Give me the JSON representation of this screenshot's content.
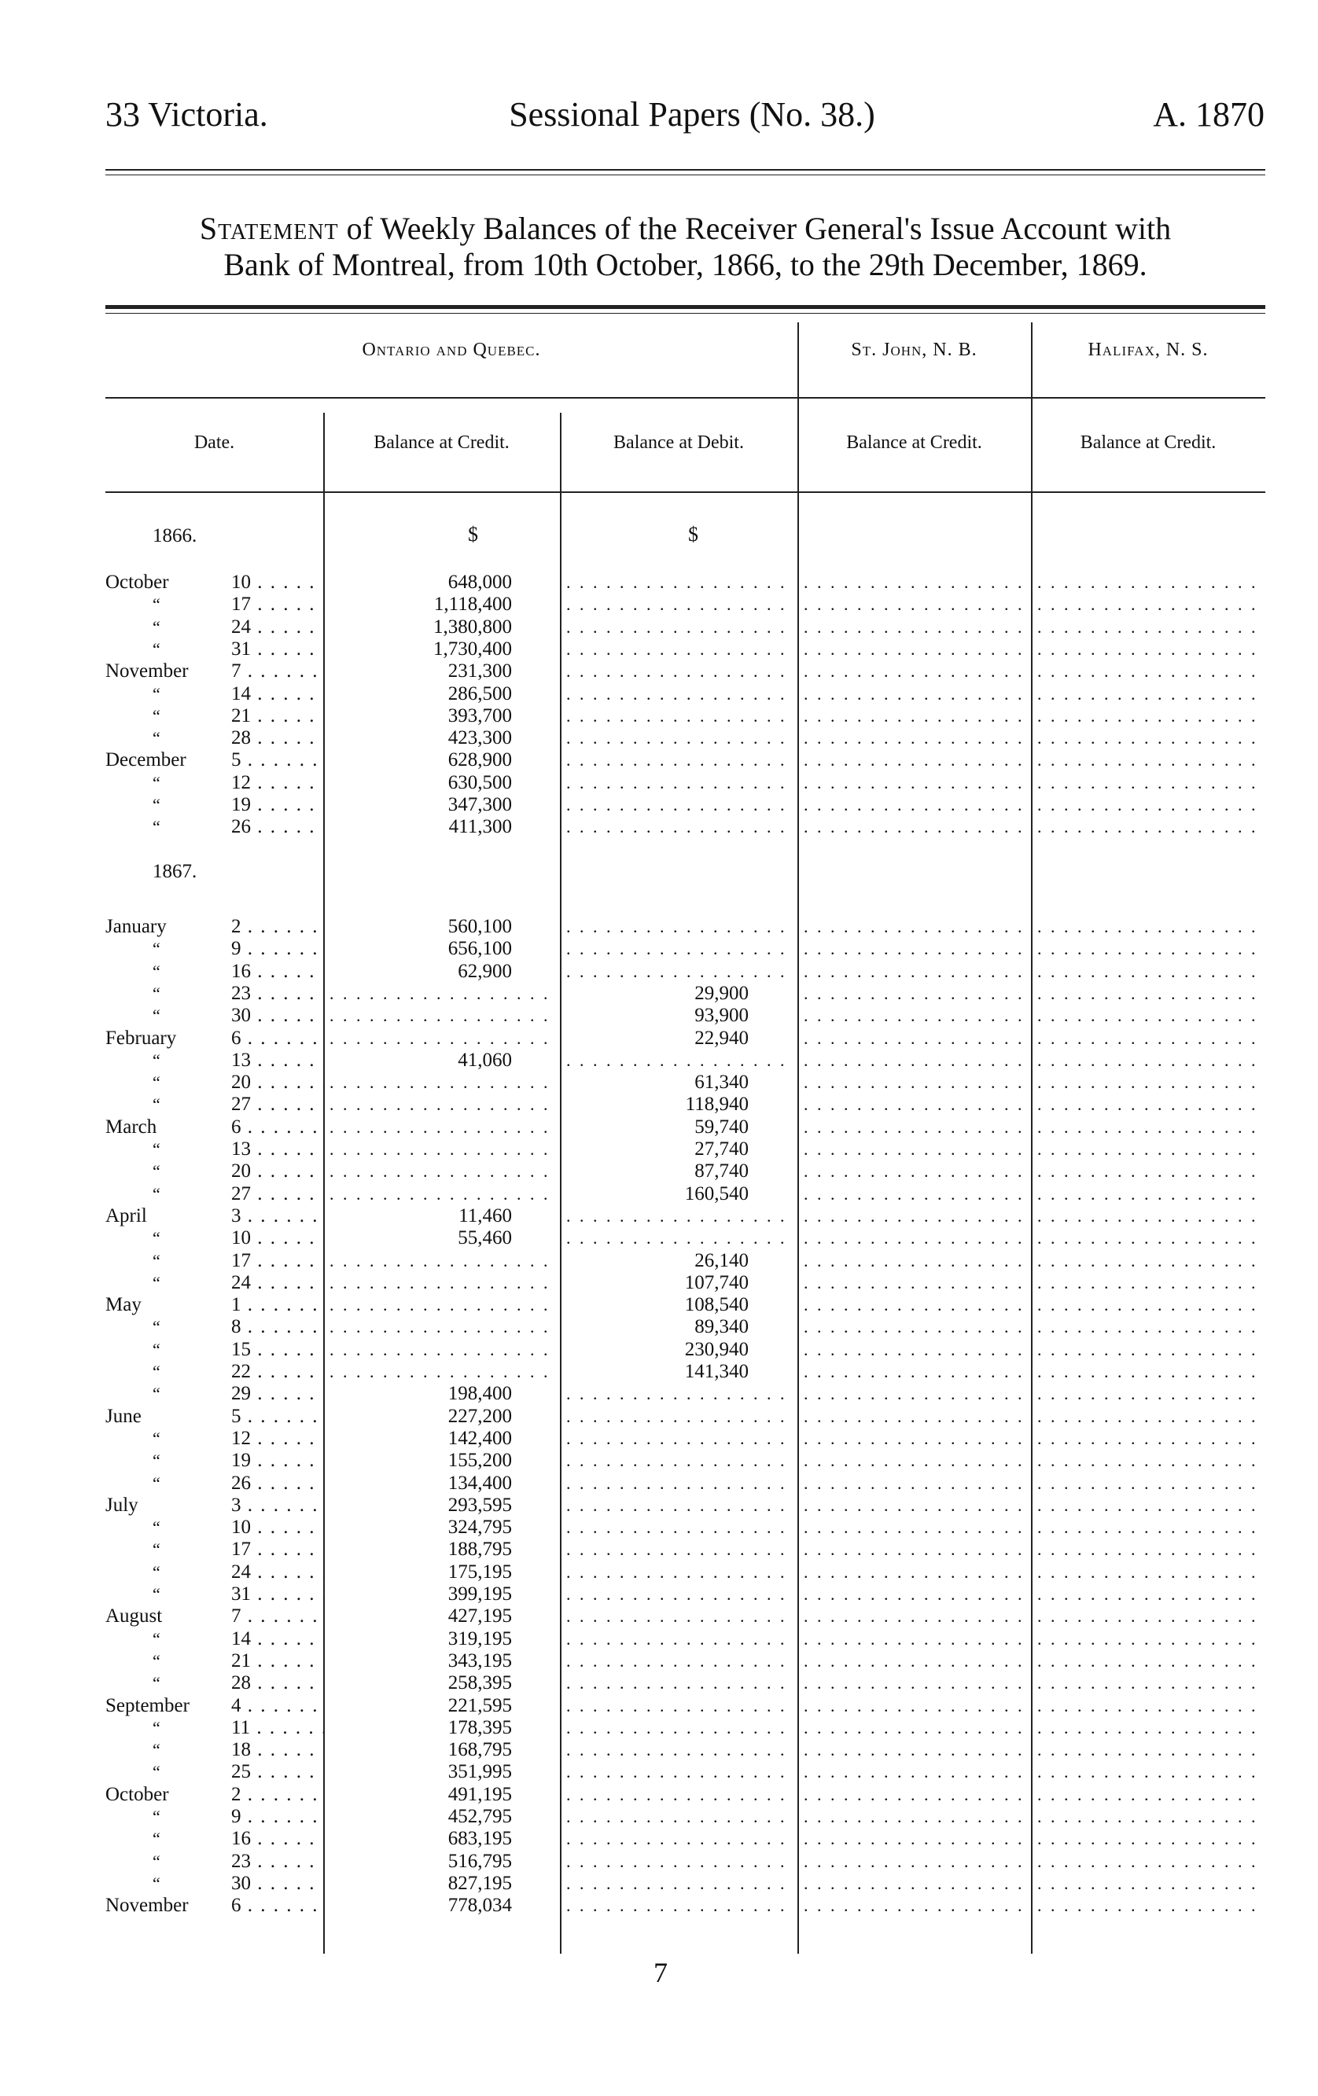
{
  "header": {
    "left": "33 Victoria.",
    "center": "Sessional Papers (No. 38.)",
    "right": "A. 1870"
  },
  "title": {
    "lead": "Statement",
    "rest": "of Weekly Balances of the Receiver General's Issue Account with",
    "line2": "Bank of Montreal, from 10th October, 1866, to the 29th December, 1869."
  },
  "table": {
    "groups": {
      "ontario_quebec": "Ontario and Quebec.",
      "st_john": "St. John, N. B.",
      "halifax": "Halifax, N. S."
    },
    "columns": {
      "date": "Date.",
      "oq_credit": "Balance at Credit.",
      "oq_debit": "Balance at Debit.",
      "sj_credit": "Balance at Credit.",
      "hx_credit": "Balance at Credit."
    },
    "currency": "$",
    "sections": [
      {
        "year": "1866.",
        "rows": [
          {
            "month": "October",
            "day": "10",
            "credit": "648,000",
            "debit": ""
          },
          {
            "month": "“",
            "day": "17",
            "credit": "1,118,400",
            "debit": ""
          },
          {
            "month": "“",
            "day": "24",
            "credit": "1,380,800",
            "debit": ""
          },
          {
            "month": "“",
            "day": "31",
            "credit": "1,730,400",
            "debit": ""
          },
          {
            "month": "November",
            "day": "7",
            "credit": "231,300",
            "debit": ""
          },
          {
            "month": "“",
            "day": "14",
            "credit": "286,500",
            "debit": ""
          },
          {
            "month": "“",
            "day": "21",
            "credit": "393,700",
            "debit": ""
          },
          {
            "month": "“",
            "day": "28",
            "credit": "423,300",
            "debit": ""
          },
          {
            "month": "December",
            "day": "5",
            "credit": "628,900",
            "debit": ""
          },
          {
            "month": "“",
            "day": "12",
            "credit": "630,500",
            "debit": ""
          },
          {
            "month": "“",
            "day": "19",
            "credit": "347,300",
            "debit": ""
          },
          {
            "month": "“",
            "day": "26",
            "credit": "411,300",
            "debit": ""
          }
        ]
      },
      {
        "year": "1867.",
        "rows": [
          {
            "month": "January",
            "day": "2",
            "credit": "560,100",
            "debit": ""
          },
          {
            "month": "“",
            "day": "9",
            "credit": "656,100",
            "debit": ""
          },
          {
            "month": "“",
            "day": "16",
            "credit": "62,900",
            "debit": ""
          },
          {
            "month": "“",
            "day": "23",
            "credit": "",
            "debit": "29,900"
          },
          {
            "month": "“",
            "day": "30",
            "credit": "",
            "debit": "93,900"
          },
          {
            "month": "February",
            "day": "6",
            "credit": "",
            "debit": "22,940"
          },
          {
            "month": "“",
            "day": "13",
            "credit": "41,060",
            "debit": ""
          },
          {
            "month": "“",
            "day": "20",
            "credit": "",
            "debit": "61,340"
          },
          {
            "month": "“",
            "day": "27",
            "credit": "",
            "debit": "118,940"
          },
          {
            "month": "March",
            "day": "6",
            "credit": "",
            "debit": "59,740"
          },
          {
            "month": "“",
            "day": "13",
            "credit": "",
            "debit": "27,740"
          },
          {
            "month": "“",
            "day": "20",
            "credit": "",
            "debit": "87,740"
          },
          {
            "month": "“",
            "day": "27",
            "credit": "",
            "debit": "160,540"
          },
          {
            "month": "April",
            "day": "3",
            "credit": "11,460",
            "debit": ""
          },
          {
            "month": "“",
            "day": "10",
            "credit": "55,460",
            "debit": ""
          },
          {
            "month": "“",
            "day": "17",
            "credit": "",
            "debit": "26,140"
          },
          {
            "month": "“",
            "day": "24",
            "credit": "",
            "debit": "107,740"
          },
          {
            "month": "May",
            "day": "1",
            "credit": "",
            "debit": "108,540"
          },
          {
            "month": "“",
            "day": "8",
            "credit": "",
            "debit": "89,340"
          },
          {
            "month": "“",
            "day": "15",
            "credit": "",
            "debit": "230,940"
          },
          {
            "month": "“",
            "day": "22",
            "credit": "",
            "debit": "141,340"
          },
          {
            "month": "“",
            "day": "29",
            "credit": "198,400",
            "debit": ""
          },
          {
            "month": "June",
            "day": "5",
            "credit": "227,200",
            "debit": ""
          },
          {
            "month": "“",
            "day": "12",
            "credit": "142,400",
            "debit": ""
          },
          {
            "month": "“",
            "day": "19",
            "credit": "155,200",
            "debit": ""
          },
          {
            "month": "“",
            "day": "26",
            "credit": "134,400",
            "debit": ""
          },
          {
            "month": "July",
            "day": "3",
            "credit": "293,595",
            "debit": ""
          },
          {
            "month": "“",
            "day": "10",
            "credit": "324,795",
            "debit": ""
          },
          {
            "month": "“",
            "day": "17",
            "credit": "188,795",
            "debit": ""
          },
          {
            "month": "“",
            "day": "24",
            "credit": "175,195",
            "debit": ""
          },
          {
            "month": "“",
            "day": "31",
            "credit": "399,195",
            "debit": ""
          },
          {
            "month": "August",
            "day": "7",
            "credit": "427,195",
            "debit": ""
          },
          {
            "month": "“",
            "day": "14",
            "credit": "319,195",
            "debit": ""
          },
          {
            "month": "“",
            "day": "21",
            "credit": "343,195",
            "debit": ""
          },
          {
            "month": "“",
            "day": "28",
            "credit": "258,395",
            "debit": ""
          },
          {
            "month": "September",
            "day": "4",
            "credit": "221,595",
            "debit": ""
          },
          {
            "month": "“",
            "day": "11",
            "credit": "178,395",
            "debit": ""
          },
          {
            "month": "“",
            "day": "18",
            "credit": "168,795",
            "debit": ""
          },
          {
            "month": "“",
            "day": "25",
            "credit": "351,995",
            "debit": ""
          },
          {
            "month": "October",
            "day": "2",
            "credit": "491,195",
            "debit": ""
          },
          {
            "month": "“",
            "day": "9",
            "credit": "452,795",
            "debit": ""
          },
          {
            "month": "“",
            "day": "16",
            "credit": "683,195",
            "debit": ""
          },
          {
            "month": "“",
            "day": "23",
            "credit": "516,795",
            "debit": ""
          },
          {
            "month": "“",
            "day": "30",
            "credit": "827,195",
            "debit": ""
          },
          {
            "month": "November",
            "day": "6",
            "credit": "778,034",
            "debit": ""
          }
        ]
      }
    ]
  },
  "footer": {
    "page_number": "7"
  }
}
